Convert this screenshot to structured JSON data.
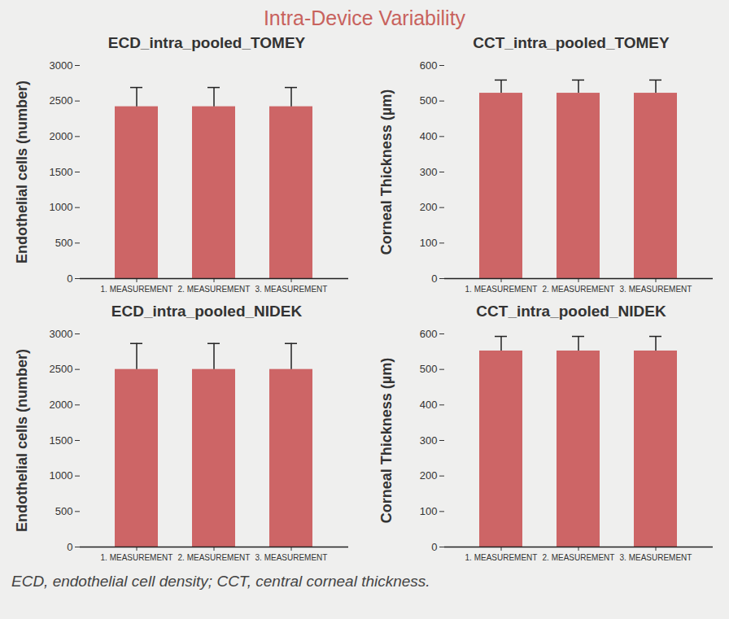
{
  "title": "Intra-Device Variability",
  "caption": "ECD, endothelial cell density; CCT, central corneal thickness.",
  "chart_data": [
    {
      "type": "bar",
      "title": "ECD_intra_pooled_TOMEY",
      "y_label": "Endothelial cells (number)",
      "categories": [
        "1. MEASUREMENT",
        "2. MEASUREMENT",
        "3. MEASUREMENT"
      ],
      "values": [
        2420,
        2420,
        2420
      ],
      "errors": [
        270,
        270,
        270
      ],
      "color": "#cd6566",
      "ylim": [
        0,
        3000
      ],
      "yticks": [
        0,
        500,
        1000,
        1500,
        2000,
        2500,
        3000
      ],
      "grid": false
    },
    {
      "type": "bar",
      "title": "CCT_intra_pooled_TOMEY",
      "y_label": "Corneal Thickness (µm)",
      "categories": [
        "1. MEASUREMENT",
        "2. MEASUREMENT",
        "3. MEASUREMENT"
      ],
      "values": [
        522,
        522,
        522
      ],
      "errors": [
        37,
        37,
        37
      ],
      "color": "#cd6566",
      "ylim": [
        0,
        600
      ],
      "yticks": [
        0,
        100,
        200,
        300,
        400,
        500,
        600
      ],
      "grid": false
    },
    {
      "type": "bar",
      "title": "ECD_intra_pooled_NIDEK",
      "y_label": "Endothelial cells (number)",
      "categories": [
        "1. MEASUREMENT",
        "2. MEASUREMENT",
        "3. MEASUREMENT"
      ],
      "values": [
        2500,
        2500,
        2500
      ],
      "errors": [
        365,
        365,
        365
      ],
      "color": "#cd6566",
      "ylim": [
        0,
        3000
      ],
      "yticks": [
        0,
        500,
        1000,
        1500,
        2000,
        2500,
        3000
      ],
      "grid": false
    },
    {
      "type": "bar",
      "title": "CCT_intra_pooled_NIDEK",
      "y_label": "Corneal Thickness (µm)",
      "categories": [
        "1. MEASUREMENT",
        "2. MEASUREMENT",
        "3. MEASUREMENT"
      ],
      "values": [
        552,
        552,
        552
      ],
      "errors": [
        41,
        41,
        41
      ],
      "color": "#cd6566",
      "ylim": [
        0,
        600
      ],
      "yticks": [
        0,
        100,
        200,
        300,
        400,
        500,
        600
      ],
      "grid": false
    }
  ]
}
